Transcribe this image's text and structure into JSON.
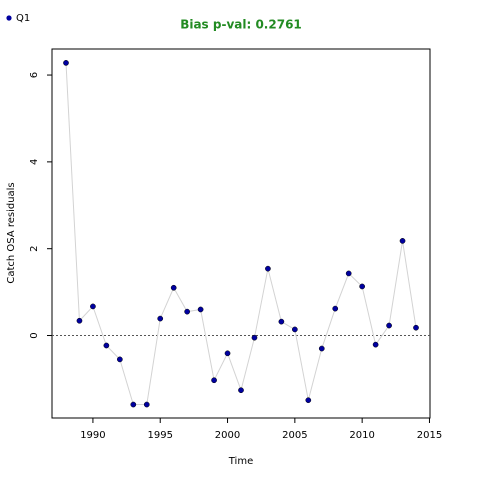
{
  "chart_data": {
    "type": "line",
    "title": "Bias p-val: 0.2761",
    "title_color": "#228b22",
    "xlabel": "Time",
    "ylabel": "Catch OSA residuals",
    "x": [
      1988,
      1989,
      1990,
      1991,
      1992,
      1993,
      1994,
      1995,
      1996,
      1997,
      1998,
      1999,
      2000,
      2001,
      2002,
      2003,
      2004,
      2005,
      2006,
      2007,
      2008,
      2009,
      2010,
      2011,
      2012,
      2013,
      2014
    ],
    "series": [
      {
        "name": "Q1",
        "color": "#0000a0",
        "line_color": "#d3d3d3",
        "values": [
          6.28,
          0.34,
          0.67,
          -0.23,
          -0.55,
          -1.59,
          -1.59,
          0.39,
          1.1,
          0.55,
          0.6,
          -1.03,
          -0.41,
          -1.26,
          -0.05,
          1.54,
          0.32,
          0.14,
          -1.49,
          -0.3,
          0.62,
          1.43,
          1.13,
          -0.21,
          0.23,
          2.18,
          0.18
        ]
      }
    ],
    "xlim": [
      1986.96,
      2015.04
    ],
    "xticks": [
      1990,
      1995,
      2000,
      2005,
      2010,
      2015
    ],
    "ylim": [
      -1.9,
      6.6
    ],
    "yticks": [
      0,
      2,
      4,
      6
    ],
    "hline": 0,
    "legend": "top-left"
  }
}
